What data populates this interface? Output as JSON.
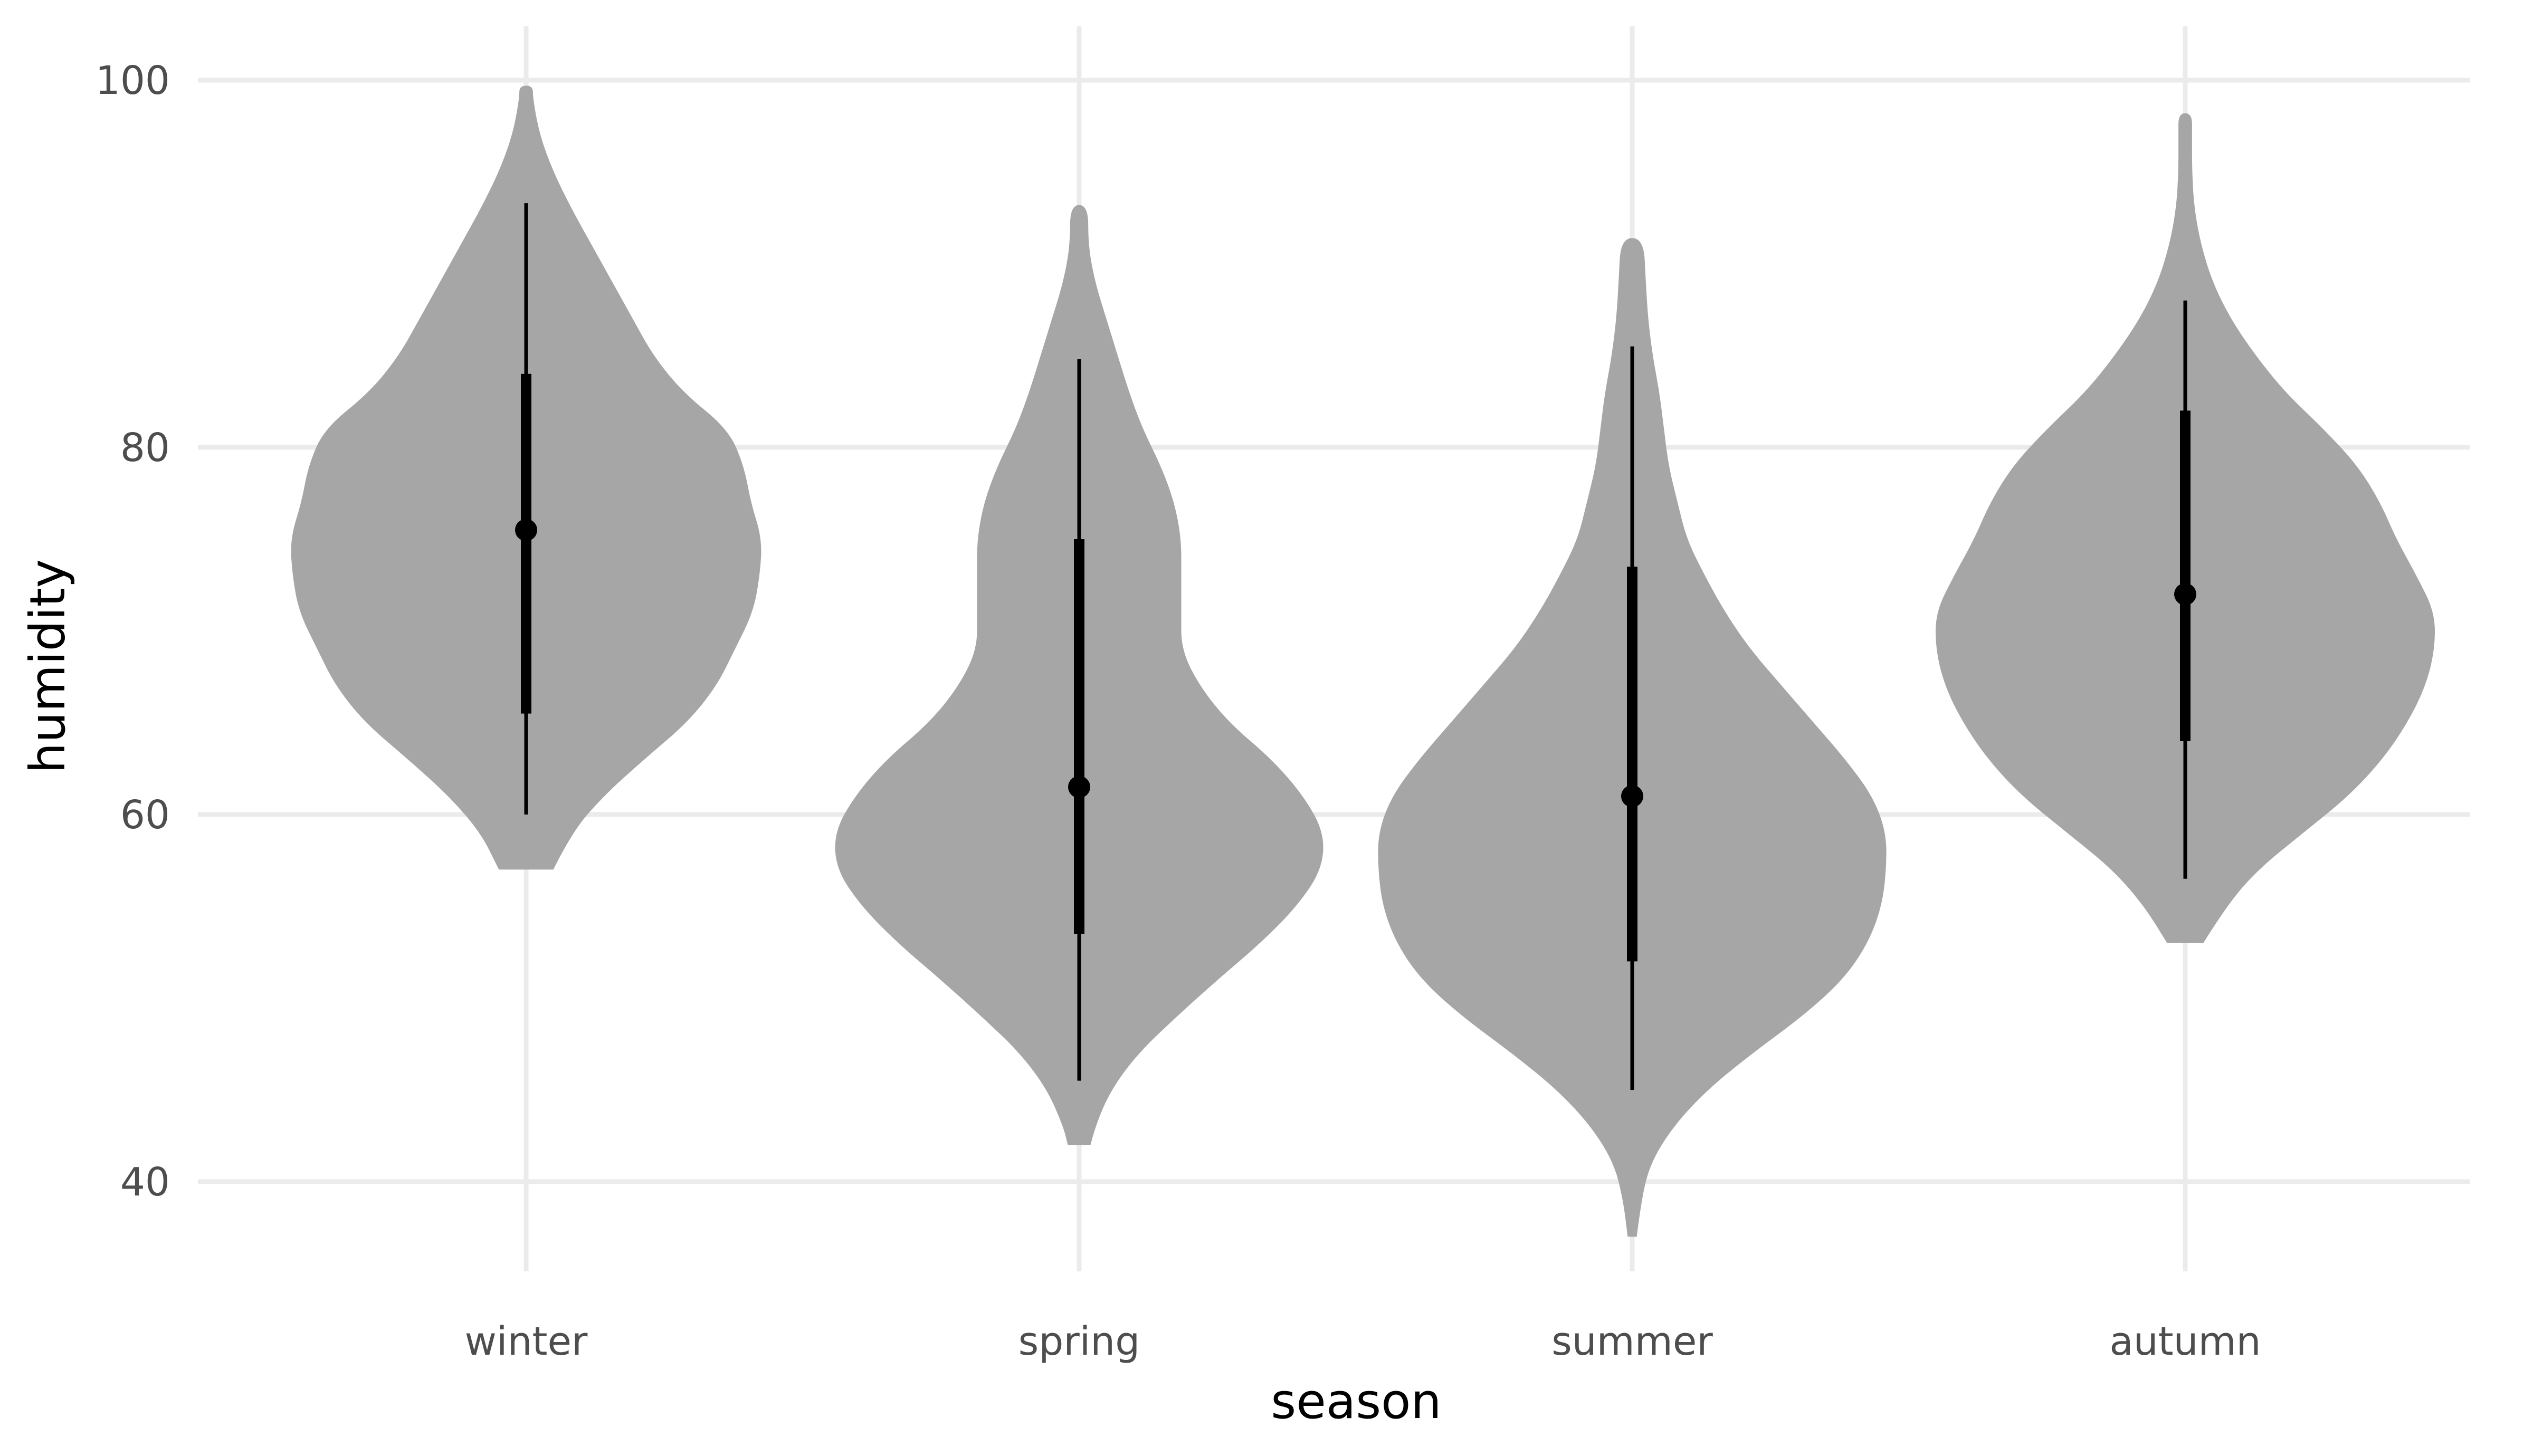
{
  "chart_data": {
    "type": "violin",
    "title": "",
    "xlabel": "season",
    "ylabel": "humidity",
    "ylim": [
      33.5,
      103
    ],
    "yticks": [
      40,
      60,
      80,
      100
    ],
    "grid": true,
    "legend": "none",
    "colors": {
      "violin_fill": "#a6a6a6",
      "interval": "#000000",
      "grid": "#ebebeb",
      "tick_text": "#4d4d4d"
    },
    "categories": [
      "winter",
      "spring",
      "summer",
      "autumn"
    ],
    "series": [
      {
        "category": "winter",
        "min": 57,
        "max": 99.7,
        "median": 75.5,
        "q1": 65.5,
        "q3": 84,
        "whisker_low": 60,
        "whisker_high": 93.3,
        "density": [
          [
            57,
            0.12
          ],
          [
            59,
            0.2
          ],
          [
            61,
            0.34
          ],
          [
            63,
            0.52
          ],
          [
            65,
            0.71
          ],
          [
            67,
            0.84
          ],
          [
            69,
            0.92
          ],
          [
            71,
            1.0
          ],
          [
            73,
            1.03
          ],
          [
            75,
            1.04
          ],
          [
            77,
            0.99
          ],
          [
            79,
            0.96
          ],
          [
            81,
            0.89
          ],
          [
            83,
            0.69
          ],
          [
            85,
            0.56
          ],
          [
            87,
            0.47
          ],
          [
            89,
            0.38
          ],
          [
            91,
            0.29
          ],
          [
            93,
            0.2
          ],
          [
            95,
            0.12
          ],
          [
            97,
            0.06
          ],
          [
            99,
            0.03
          ],
          [
            99.7,
            0.03
          ]
        ]
      },
      {
        "category": "spring",
        "min": 42,
        "max": 93.2,
        "median": 61.5,
        "q1": 53.5,
        "q3": 75,
        "whisker_low": 45.5,
        "whisker_high": 84.8,
        "density": [
          [
            42,
            0.05
          ],
          [
            43,
            0.07
          ],
          [
            45,
            0.14
          ],
          [
            47,
            0.26
          ],
          [
            49,
            0.43
          ],
          [
            51,
            0.61
          ],
          [
            53,
            0.8
          ],
          [
            55,
            0.96
          ],
          [
            57,
            1.07
          ],
          [
            59,
            1.08
          ],
          [
            61,
            0.99
          ],
          [
            63,
            0.85
          ],
          [
            65,
            0.66
          ],
          [
            67,
            0.53
          ],
          [
            69,
            0.45
          ],
          [
            71,
            0.45
          ],
          [
            73,
            0.45
          ],
          [
            75,
            0.45
          ],
          [
            77,
            0.42
          ],
          [
            79,
            0.36
          ],
          [
            81,
            0.28
          ],
          [
            83,
            0.22
          ],
          [
            85,
            0.17
          ],
          [
            87,
            0.12
          ],
          [
            89,
            0.07
          ],
          [
            91,
            0.04
          ],
          [
            93.2,
            0.04
          ]
        ]
      },
      {
        "category": "summer",
        "min": 37,
        "max": 91.4,
        "median": 61,
        "q1": 52,
        "q3": 73.5,
        "whisker_low": 45,
        "whisker_high": 85.5,
        "density": [
          [
            37,
            0.02
          ],
          [
            39,
            0.04
          ],
          [
            41,
            0.08
          ],
          [
            43,
            0.18
          ],
          [
            45,
            0.33
          ],
          [
            47,
            0.53
          ],
          [
            49,
            0.75
          ],
          [
            51,
            0.93
          ],
          [
            53,
            1.04
          ],
          [
            55,
            1.1
          ],
          [
            57,
            1.12
          ],
          [
            59,
            1.12
          ],
          [
            61,
            1.06
          ],
          [
            63,
            0.94
          ],
          [
            65,
            0.8
          ],
          [
            67,
            0.66
          ],
          [
            69,
            0.52
          ],
          [
            71,
            0.41
          ],
          [
            73,
            0.32
          ],
          [
            75,
            0.24
          ],
          [
            77,
            0.2
          ],
          [
            79,
            0.16
          ],
          [
            81,
            0.14
          ],
          [
            83,
            0.12
          ],
          [
            85,
            0.09
          ],
          [
            87,
            0.07
          ],
          [
            89,
            0.06
          ],
          [
            91.4,
            0.05
          ]
        ]
      },
      {
        "category": "autumn",
        "min": 53,
        "max": 98.2,
        "median": 72,
        "q1": 64,
        "q3": 82,
        "whisker_low": 56.5,
        "whisker_high": 88,
        "density": [
          [
            53,
            0.08
          ],
          [
            55,
            0.18
          ],
          [
            57,
            0.32
          ],
          [
            59,
            0.52
          ],
          [
            61,
            0.72
          ],
          [
            63,
            0.87
          ],
          [
            65,
            0.98
          ],
          [
            67,
            1.06
          ],
          [
            69,
            1.1
          ],
          [
            71,
            1.1
          ],
          [
            73,
            1.02
          ],
          [
            75,
            0.93
          ],
          [
            77,
            0.86
          ],
          [
            79,
            0.76
          ],
          [
            81,
            0.61
          ],
          [
            83,
            0.44
          ],
          [
            85,
            0.31
          ],
          [
            87,
            0.2
          ],
          [
            89,
            0.12
          ],
          [
            91,
            0.07
          ],
          [
            93,
            0.04
          ],
          [
            95,
            0.03
          ],
          [
            97,
            0.03
          ],
          [
            98.2,
            0.03
          ]
        ]
      }
    ]
  }
}
